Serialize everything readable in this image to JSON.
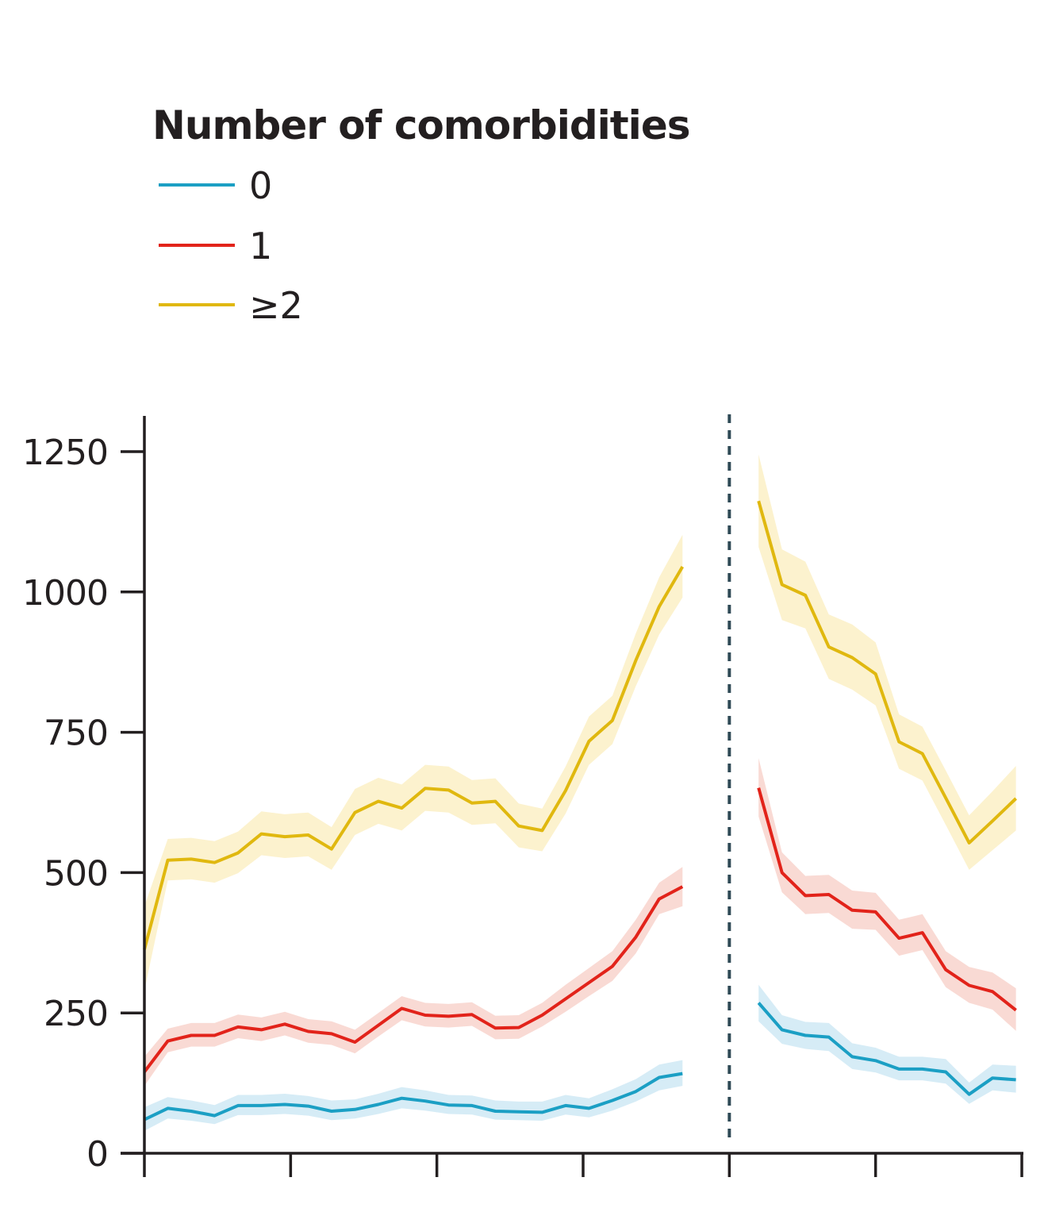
{
  "chart_data": {
    "type": "line",
    "title": "",
    "xlabel": "",
    "ylabel": "",
    "legend_title": "Number of comorbidities",
    "legend_position": "top-left",
    "ylim": [
      0,
      1300
    ],
    "yticks": [
      0,
      250,
      500,
      750,
      1000,
      1250
    ],
    "ytick_labels": [
      "0",
      "250",
      "500",
      "750",
      "1000",
      "1250"
    ],
    "xlim": [
      0,
      60
    ],
    "xticks": [
      0,
      10,
      20,
      30,
      40,
      50,
      60
    ],
    "break_at": 40,
    "grid": false,
    "colors": {
      "axis": "#231f20",
      "divider": "#2f4a56"
    },
    "series": [
      {
        "name": "0",
        "color": "#1b9fc4",
        "band_color": "#cfe9f5",
        "segments": [
          {
            "x": [
              0,
              1.6,
              3.2,
              4.8,
              6.4,
              8,
              9.6,
              11.2,
              12.8,
              14.4,
              16,
              17.6,
              19.2,
              20.8,
              22.4,
              24,
              25.6,
              27.2,
              28.8,
              30.4,
              32,
              33.6,
              35.2,
              36.8,
              38.4
            ],
            "y": [
              60,
              80,
              75,
              67,
              85,
              85,
              87,
              84,
              75,
              78,
              87,
              98,
              93,
              86,
              85,
              75,
              74,
              73,
              85,
              80,
              94,
              110,
              135,
              142,
              null
            ],
            "lower": [
              40,
              62,
              58,
              52,
              68,
              68,
              70,
              67,
              59,
              62,
              70,
              80,
              76,
              70,
              69,
              60,
              59,
              58,
              69,
              64,
              76,
              92,
              112,
              120,
              null
            ],
            "upper": [
              82,
              100,
              94,
              86,
              104,
              104,
              106,
              102,
              94,
              96,
              106,
              118,
              112,
              104,
              103,
              94,
              92,
              92,
              104,
              98,
              114,
              132,
              158,
              166,
              null
            ]
          },
          {
            "x": [
              42,
              43.6,
              45.2,
              46.8,
              48.4,
              50,
              51.6,
              53.2,
              54.8,
              56.4,
              58,
              59.6
            ],
            "y": [
              268,
              220,
              210,
              207,
              172,
              165,
              150,
              150,
              145,
              105,
              134,
              131
            ],
            "lower": [
              235,
              195,
              186,
              182,
              150,
              144,
              130,
              130,
              124,
              88,
              112,
              108
            ],
            "upper": [
              300,
              246,
              234,
              232,
              196,
              188,
              172,
              172,
              168,
              126,
              158,
              156
            ]
          }
        ]
      },
      {
        "name": "1",
        "color": "#e2231a",
        "band_color": "#f8d3cc",
        "segments": [
          {
            "x": [
              0,
              1.6,
              3.2,
              4.8,
              6.4,
              8,
              9.6,
              11.2,
              12.8,
              14.4,
              16,
              17.6,
              19.2,
              20.8,
              22.4,
              24,
              25.6,
              27.2,
              28.8,
              30.4,
              32,
              33.6,
              35.2,
              36.8,
              38.4
            ],
            "y": [
              145,
              200,
              210,
              210,
              225,
              220,
              230,
              217,
              213,
              198,
              228,
              258,
              246,
              244,
              247,
              223,
              224,
              246,
              275,
              304,
              333,
              385,
              453,
              475,
              null
            ],
            "lower": [
              120,
              180,
              190,
              190,
              205,
              200,
              210,
              197,
              193,
              178,
              208,
              237,
              226,
              224,
              227,
              203,
              204,
              226,
              252,
              280,
              307,
              356,
              426,
              440,
              null
            ],
            "upper": [
              172,
              222,
              232,
              232,
              247,
              242,
              252,
              239,
              235,
              220,
              250,
              280,
              268,
              266,
              269,
              245,
              246,
              268,
              300,
              330,
              360,
              416,
              482,
              510,
              null
            ]
          },
          {
            "x": [
              42,
              43.6,
              45.2,
              46.8,
              48.4,
              50,
              51.6,
              53.2,
              54.8,
              56.4,
              58,
              59.6
            ],
            "y": [
              651,
              500,
              459,
              461,
              433,
              430,
              383,
              393,
              327,
              299,
              288,
              255
            ],
            "lower": [
              600,
              465,
              426,
              428,
              400,
              398,
              352,
              362,
              296,
              268,
              256,
              218
            ],
            "upper": [
              704,
              536,
              494,
              496,
              468,
              464,
              416,
              426,
              360,
              332,
              322,
              294
            ]
          }
        ]
      },
      {
        "name": "≥2",
        "color": "#e0b80f",
        "band_color": "#fbf0c6",
        "segments": [
          {
            "x": [
              0,
              1.6,
              3.2,
              4.8,
              6.4,
              8,
              9.6,
              11.2,
              12.8,
              14.4,
              16,
              17.6,
              19.2,
              20.8,
              22.4,
              24,
              25.6,
              27.2,
              28.8,
              30.4,
              32,
              33.6,
              35.2,
              36.8,
              38.4
            ],
            "y": [
              363,
              522,
              524,
              518,
              535,
              569,
              564,
              567,
              542,
              607,
              627,
              615,
              650,
              647,
              624,
              627,
              583,
              575,
              646,
              734,
              771,
              878,
              974,
              1045,
              null
            ],
            "lower": [
              290,
              486,
              488,
              482,
              499,
              531,
              526,
              529,
              505,
              567,
              587,
              575,
              610,
              607,
              585,
              588,
              545,
              538,
              605,
              692,
              729,
              832,
              924,
              990,
              null
            ],
            "upper": [
              440,
              560,
              562,
              556,
              573,
              609,
              604,
              607,
              581,
              649,
              669,
              657,
              692,
              689,
              665,
              668,
              623,
              614,
              689,
              778,
              815,
              926,
              1026,
              1102,
              null
            ]
          },
          {
            "x": [
              42,
              43.6,
              45.2,
              46.8,
              48.4,
              50,
              51.6,
              53.2,
              54.8,
              56.4,
              58,
              59.6
            ],
            "y": [
              1162,
              1013,
              994,
              902,
              883,
              854,
              733,
              712,
              633,
              553,
              592,
              632
            ],
            "lower": [
              1080,
              950,
              935,
              845,
              826,
              798,
              685,
              664,
              585,
              505,
              540,
              575
            ],
            "upper": [
              1245,
              1076,
              1054,
              960,
              942,
              910,
              782,
              760,
              682,
              602,
              645,
              690
            ]
          }
        ]
      }
    ]
  }
}
